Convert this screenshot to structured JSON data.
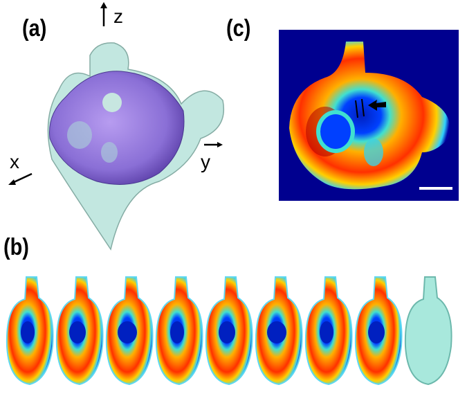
{
  "panels": {
    "a": {
      "label": "(a)",
      "axes": {
        "x": "x",
        "y": "y",
        "z": "z"
      }
    },
    "b": {
      "label": "(b)",
      "slice_count": 9
    },
    "c": {
      "label": "(c)"
    }
  },
  "colors": {
    "outer_surface": "#bfe6df",
    "inner_surface": "#8a6fd6",
    "colormap_low": "#00008f",
    "colormap_mid": "#40e0d0",
    "colormap_high": "#ff2a00",
    "colormap_max": "#800000",
    "scale_bar": "#ffffff"
  }
}
